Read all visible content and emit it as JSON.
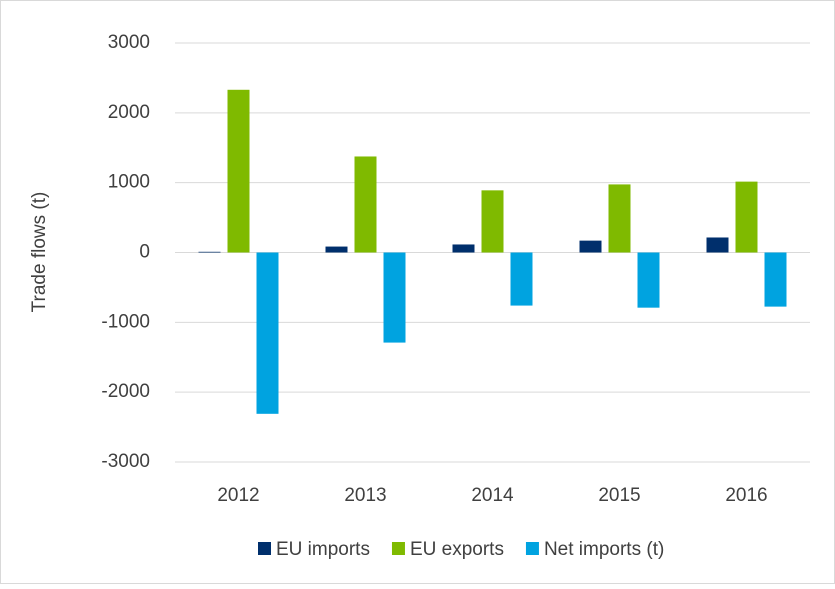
{
  "chart_data": {
    "type": "bar",
    "categories": [
      "2012",
      "2013",
      "2014",
      "2015",
      "2016"
    ],
    "series": [
      {
        "name": "EU imports",
        "color": "#002f6c",
        "values": [
          10,
          85,
          115,
          170,
          215
        ]
      },
      {
        "name": "EU exports",
        "color": "#7fba00",
        "values": [
          2330,
          1375,
          890,
          975,
          1015
        ]
      },
      {
        "name": "Net imports (t)",
        "color": "#00a3e0",
        "values": [
          -2310,
          -1290,
          -760,
          -790,
          -775
        ]
      }
    ],
    "y_axis_label": "Trade flows (t)",
    "ylim": [
      -3000,
      3000
    ],
    "yticks": [
      -3000,
      -2000,
      -1000,
      0,
      1000,
      2000,
      3000
    ],
    "grid": true,
    "legend": "bottom"
  }
}
